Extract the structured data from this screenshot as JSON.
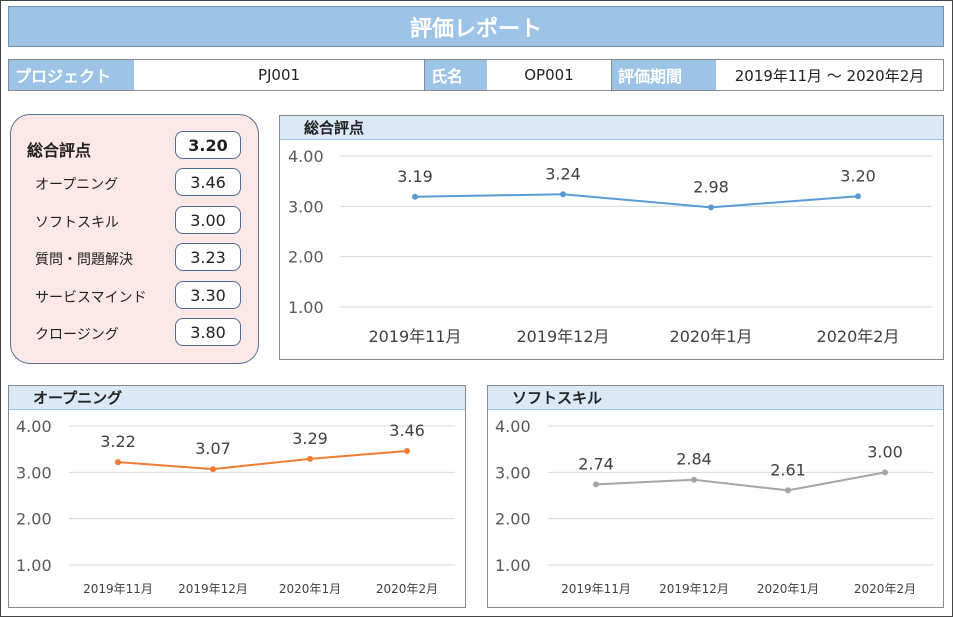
{
  "report": {
    "title": "評価レポート"
  },
  "info": {
    "project_label": "プロジェクト",
    "project_value": "PJ001",
    "name_label": "氏名",
    "name_value": "OP001",
    "period_label": "評価期間",
    "period_value": "2019年11月 ～ 2020年2月"
  },
  "scores": [
    {
      "label": "総合評点",
      "value": "3.20"
    },
    {
      "label": "オープニング",
      "value": "3.46"
    },
    {
      "label": "ソフトスキル",
      "value": "3.00"
    },
    {
      "label": "質問・問題解決",
      "value": "3.23"
    },
    {
      "label": "サービスマインド",
      "value": "3.30"
    },
    {
      "label": "クロージング",
      "value": "3.80"
    }
  ],
  "chart_data": [
    {
      "type": "line",
      "title": "総合評点",
      "categories": [
        "2019年11月",
        "2019年12月",
        "2020年1月",
        "2020年2月"
      ],
      "values": [
        3.19,
        3.24,
        2.98,
        3.2
      ],
      "value_labels": [
        "3.19",
        "3.24",
        "2.98",
        "3.20"
      ],
      "yticks": [
        "4.00",
        "3.00",
        "2.00",
        "1.00"
      ],
      "ylim": [
        1,
        4
      ],
      "color": "#5b9bd5",
      "grid": true
    },
    {
      "type": "line",
      "title": "オープニング",
      "categories": [
        "2019年11月",
        "2019年12月",
        "2020年1月",
        "2020年2月"
      ],
      "values": [
        3.22,
        3.07,
        3.29,
        3.46
      ],
      "value_labels": [
        "3.22",
        "3.07",
        "3.29",
        "3.46"
      ],
      "yticks": [
        "4.00",
        "3.00",
        "2.00",
        "1.00"
      ],
      "ylim": [
        1,
        4
      ],
      "color": "#ed7d31",
      "grid": true
    },
    {
      "type": "line",
      "title": "ソフトスキル",
      "categories": [
        "2019年11月",
        "2019年12月",
        "2020年1月",
        "2020年2月"
      ],
      "values": [
        2.74,
        2.84,
        2.61,
        3.0
      ],
      "value_labels": [
        "2.74",
        "2.84",
        "2.61",
        "3.00"
      ],
      "yticks": [
        "4.00",
        "3.00",
        "2.00",
        "1.00"
      ],
      "ylim": [
        1,
        4
      ],
      "color": "#a5a5a5",
      "grid": true
    }
  ]
}
